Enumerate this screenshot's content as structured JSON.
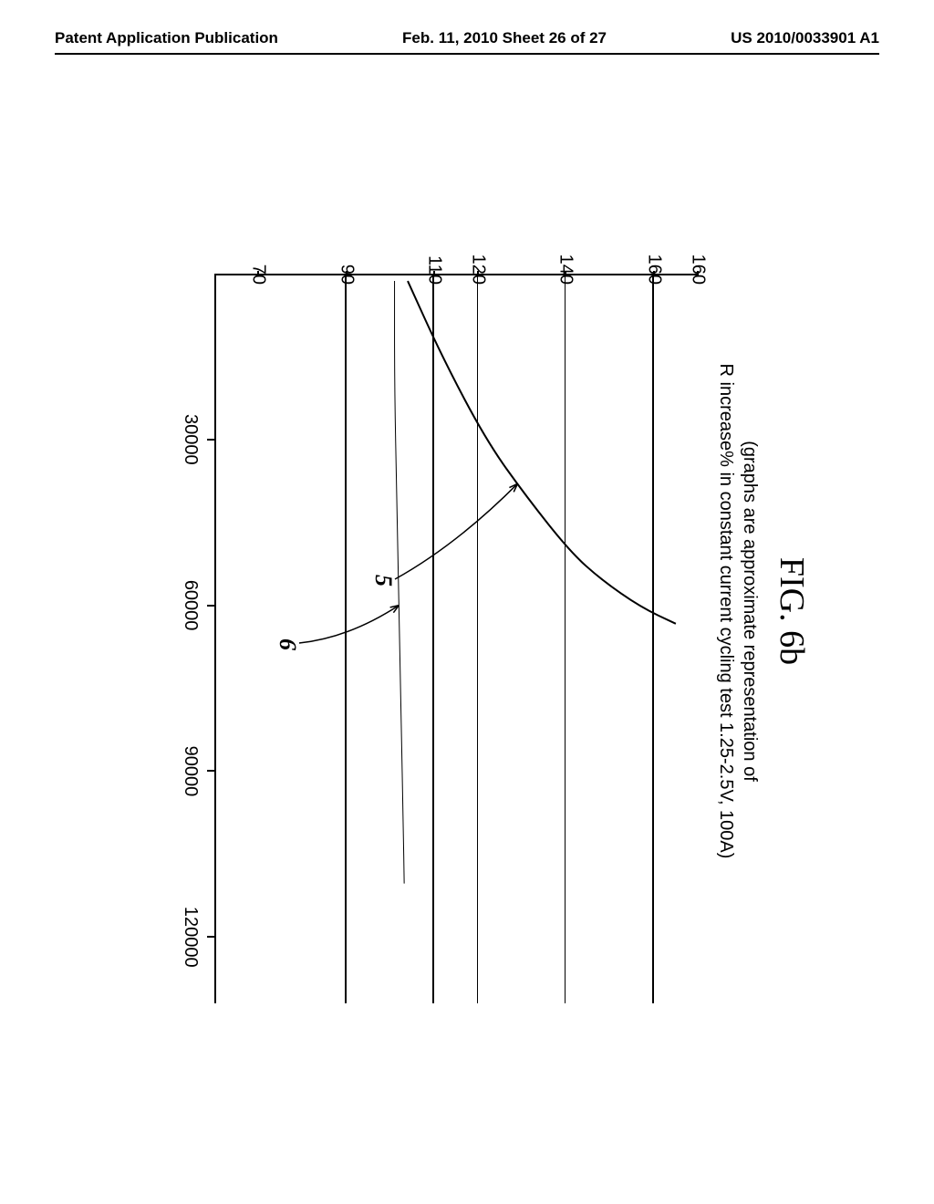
{
  "header": {
    "left": "Patent Application Publication",
    "center": "Feb. 11, 2010  Sheet 26 of 27",
    "right": "US 2010/0033901 A1"
  },
  "figure": {
    "title": "FIG. 6b",
    "subtitle_line1": "(graphs are approximate representation of",
    "subtitle_line2": "R increase% in constant current cycling test 1.25-2.5V, 100A)",
    "chart": {
      "type": "line",
      "y_ticks": [
        70,
        90,
        110,
        120,
        140,
        160,
        160
      ],
      "y_tick_draw_values": [
        70,
        90,
        110,
        120,
        140,
        160,
        170
      ],
      "x_ticks": [
        30000,
        60000,
        90000,
        120000
      ],
      "ymin": 60,
      "ymax": 170,
      "xmin": 0,
      "xmax": 132000,
      "grid_values_y": [
        90,
        110,
        120,
        140,
        160
      ],
      "series": [
        {
          "label": "5",
          "points": [
            [
              1000,
              104
            ],
            [
              15000,
              112
            ],
            [
              30000,
              122
            ],
            [
              40000,
              131
            ],
            [
              50000,
              141
            ],
            [
              55000,
              148
            ],
            [
              60000,
              157
            ],
            [
              63000,
              165
            ]
          ],
          "stroke": "#000000",
          "width": 2,
          "callout_at": [
            38000,
            129
          ],
          "label_pos_x": 330,
          "label_pos_y": 330
        },
        {
          "label": "6",
          "points": [
            [
              1000,
              101
            ],
            [
              20000,
              101
            ],
            [
              40000,
              101.5
            ],
            [
              60000,
              102
            ],
            [
              80000,
              102.5
            ],
            [
              100000,
              103
            ],
            [
              110000,
              103.2
            ]
          ],
          "stroke": "#000000",
          "width": 1,
          "callout_at": [
            60000,
            102
          ],
          "label_pos_x": 400,
          "label_pos_y": 435
        }
      ],
      "background": "#ffffff",
      "axis_color": "#000000"
    }
  }
}
